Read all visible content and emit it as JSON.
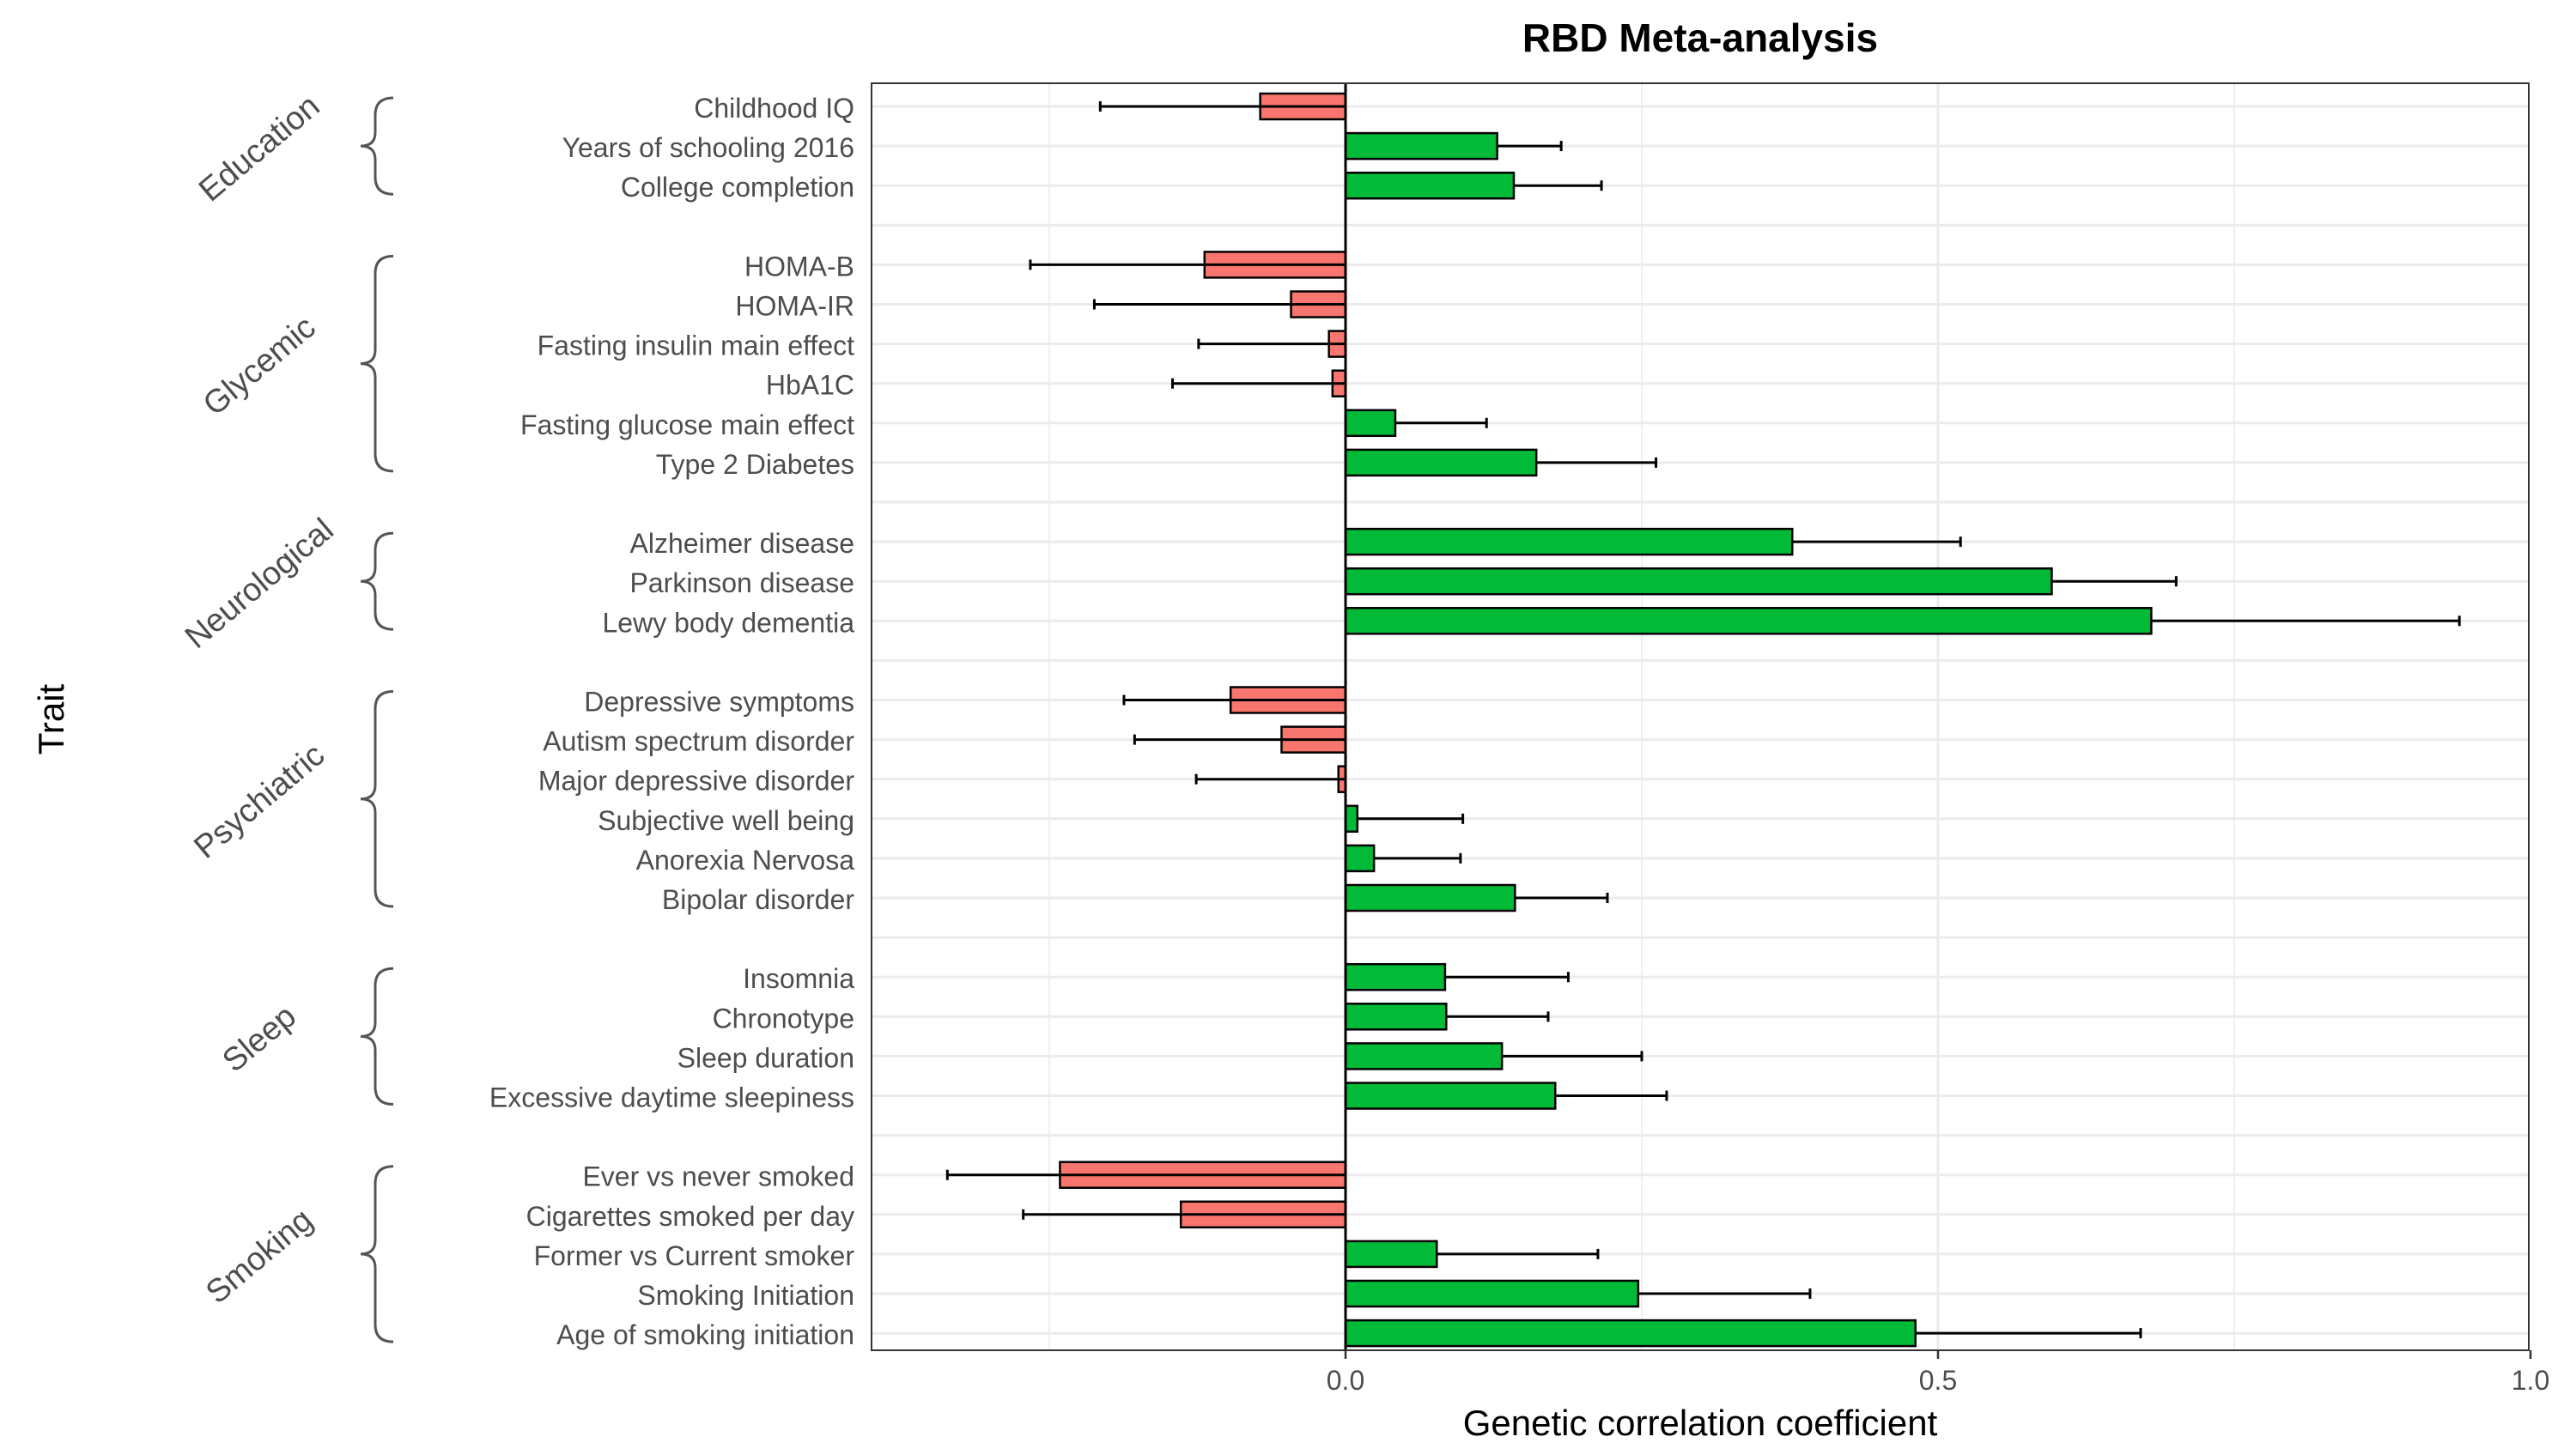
{
  "chart_data": {
    "type": "bar",
    "title": "RBD Meta-analysis",
    "xlabel": "Genetic correlation coefficient",
    "ylabel": "Trait",
    "xlim": [
      -0.4,
      1.0
    ],
    "xticks": [
      0.0,
      0.5,
      1.0
    ],
    "xtick_labels": [
      "0.0",
      "0.5",
      "1.0"
    ],
    "grid": true,
    "legend": "none",
    "colors": {
      "positive": "#00BA38",
      "negative": "#F8766D",
      "outline": "#000000"
    },
    "groups": [
      {
        "name": "Education",
        "traits": [
          {
            "label": "Childhood IQ",
            "value": -0.072,
            "lo": -0.207,
            "hi": 0.0
          },
          {
            "label": "Years of schooling 2016",
            "value": 0.128,
            "lo": 0.128,
            "hi": 0.182
          },
          {
            "label": "College completion",
            "value": 0.142,
            "lo": 0.142,
            "hi": 0.216
          }
        ]
      },
      {
        "name": "Glycemic",
        "traits": [
          {
            "label": "HOMA-B",
            "value": -0.119,
            "lo": -0.266,
            "hi": 0.0
          },
          {
            "label": "HOMA-IR",
            "value": -0.046,
            "lo": -0.212,
            "hi": 0.0
          },
          {
            "label": "Fasting insulin main effect",
            "value": -0.014,
            "lo": -0.124,
            "hi": 0.0
          },
          {
            "label": "HbA1C",
            "value": -0.011,
            "lo": -0.146,
            "hi": 0.0
          },
          {
            "label": "Fasting glucose main effect",
            "value": 0.042,
            "lo": 0.042,
            "hi": 0.119
          },
          {
            "label": "Type 2 Diabetes",
            "value": 0.161,
            "lo": 0.161,
            "hi": 0.262
          }
        ]
      },
      {
        "name": "Neurological",
        "traits": [
          {
            "label": "Alzheimer disease",
            "value": 0.377,
            "lo": 0.377,
            "hi": 0.519
          },
          {
            "label": "Parkinson disease",
            "value": 0.596,
            "lo": 0.596,
            "hi": 0.701
          },
          {
            "label": "Lewy body dementia",
            "value": 0.68,
            "lo": 0.68,
            "hi": 0.94
          }
        ]
      },
      {
        "name": "Psychiatric",
        "traits": [
          {
            "label": "Depressive symptoms",
            "value": -0.097,
            "lo": -0.187,
            "hi": 0.0
          },
          {
            "label": "Autism spectrum disorder",
            "value": -0.054,
            "lo": -0.178,
            "hi": 0.0
          },
          {
            "label": "Major depressive disorder",
            "value": -0.006,
            "lo": -0.126,
            "hi": 0.0
          },
          {
            "label": "Subjective well being",
            "value": 0.01,
            "lo": 0.01,
            "hi": 0.099
          },
          {
            "label": "Anorexia Nervosa",
            "value": 0.024,
            "lo": 0.024,
            "hi": 0.097
          },
          {
            "label": "Bipolar disorder",
            "value": 0.143,
            "lo": 0.143,
            "hi": 0.221
          }
        ]
      },
      {
        "name": "Sleep",
        "traits": [
          {
            "label": "Insomnia",
            "value": 0.084,
            "lo": 0.084,
            "hi": 0.188
          },
          {
            "label": "Chronotype",
            "value": 0.085,
            "lo": 0.085,
            "hi": 0.171
          },
          {
            "label": "Sleep duration",
            "value": 0.132,
            "lo": 0.132,
            "hi": 0.25
          },
          {
            "label": "Excessive daytime sleepiness",
            "value": 0.177,
            "lo": 0.177,
            "hi": 0.271
          }
        ]
      },
      {
        "name": "Smoking",
        "traits": [
          {
            "label": "Ever vs never smoked",
            "value": -0.241,
            "lo": -0.336,
            "hi": 0.0
          },
          {
            "label": "Cigarettes smoked per day",
            "value": -0.139,
            "lo": -0.272,
            "hi": 0.0
          },
          {
            "label": "Former vs Current smoker",
            "value": 0.077,
            "lo": 0.077,
            "hi": 0.213
          },
          {
            "label": "Smoking Initiation",
            "value": 0.247,
            "lo": 0.247,
            "hi": 0.392
          },
          {
            "label": "Age of smoking initiation",
            "value": 0.481,
            "lo": 0.481,
            "hi": 0.671
          }
        ]
      }
    ]
  }
}
